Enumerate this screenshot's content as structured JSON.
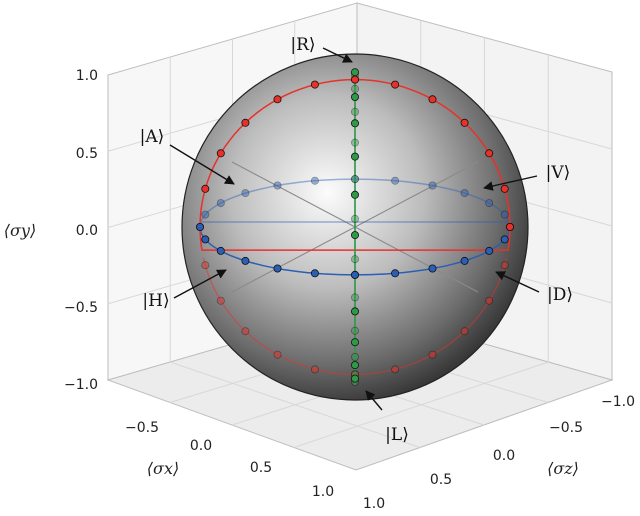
{
  "chart_data": {
    "type": "scatter",
    "projection": "3d",
    "title": "",
    "axes": {
      "x": {
        "label": "⟨σx⟩",
        "ticks": [
          "−0.5",
          "0.0",
          "0.5",
          "1.0"
        ],
        "range": [
          -1,
          1
        ]
      },
      "z": {
        "label": "⟨σz⟩",
        "ticks": [
          "1.0",
          "0.5",
          "0.0",
          "−0.5",
          "−1.0"
        ],
        "range": [
          -1,
          1
        ]
      },
      "y": {
        "label": "⟨σy⟩",
        "ticks": [
          "1.0",
          "0.5",
          "0.0",
          "−0.5",
          "−1.0"
        ],
        "range": [
          -1,
          1
        ]
      }
    },
    "grid": true,
    "sphere": {
      "radius": 1,
      "shading": "gray"
    },
    "circles": [
      {
        "plane": "equator",
        "color": "#2a5fb5"
      },
      {
        "plane": "red-great-circle",
        "color": "#e8312a"
      },
      {
        "plane": "green-great-circle",
        "color": "#2e9a48"
      }
    ],
    "series": [
      {
        "color": "#2a5fb5",
        "curve": "equator",
        "points_deg": [
          0,
          15,
          30,
          45,
          60,
          75,
          90,
          105,
          120,
          135,
          150,
          165,
          180,
          195,
          210,
          225,
          240,
          255,
          270,
          285,
          300,
          315,
          330,
          345
        ]
      },
      {
        "color": "#e8312a",
        "curve": "red-great-circle",
        "points_deg": [
          0,
          15,
          30,
          45,
          60,
          75,
          90,
          105,
          120,
          135,
          150,
          165,
          180,
          195,
          210,
          225,
          240,
          255,
          270,
          285,
          300,
          315,
          330,
          345
        ]
      },
      {
        "color": "#2e9a48",
        "curve": "green-great-circle",
        "points_deg": [
          0,
          15,
          30,
          45,
          60,
          75,
          90,
          105,
          120,
          135,
          150,
          165,
          180,
          195,
          210,
          225,
          240,
          255,
          270,
          285,
          300,
          315,
          330,
          345
        ]
      }
    ],
    "annotations": [
      {
        "text": "|R⟩",
        "target": [
          0,
          1,
          0
        ]
      },
      {
        "text": "|L⟩",
        "target": [
          0,
          -1,
          0
        ]
      },
      {
        "text": "|A⟩",
        "target": [
          -0.7071,
          0,
          0.7071
        ]
      },
      {
        "text": "|V⟩",
        "target": [
          0,
          0,
          -1
        ]
      },
      {
        "text": "|H⟩",
        "target": [
          0,
          0,
          1
        ]
      },
      {
        "text": "|D⟩",
        "target": [
          0.7071,
          0,
          -0.7071
        ]
      }
    ]
  }
}
